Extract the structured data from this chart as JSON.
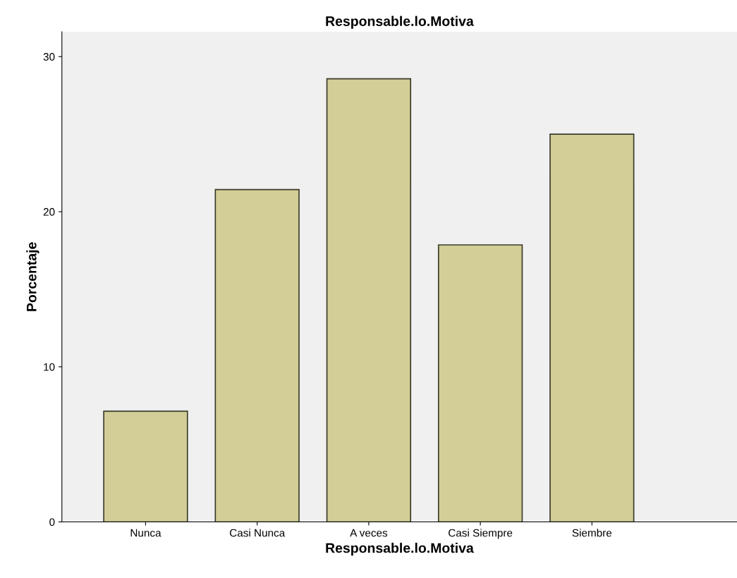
{
  "chart_data": {
    "type": "bar",
    "title": "Responsable.lo.Motiva",
    "xlabel": "Responsable.lo.Motiva",
    "ylabel": "Porcentaje",
    "categories": [
      "Nunca",
      "Casi Nunca",
      "A veces",
      "Casi Siempre",
      "Siembre"
    ],
    "values": [
      7.14,
      21.43,
      28.57,
      17.86,
      25.0
    ],
    "color": "#d3ce97",
    "ylim": [
      0,
      31.6
    ],
    "yticks": [
      0,
      10,
      20,
      30
    ],
    "grid": false
  }
}
